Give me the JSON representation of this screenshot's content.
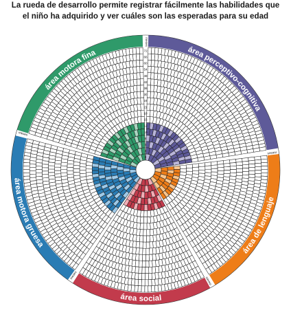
{
  "header": {
    "line1": "La rueda de desarrollo permite registrar fácilmente las habilidades que",
    "line2": "el niño ha adquirido y ver cuáles son las esperadas para su edad"
  },
  "areas": [
    {
      "key": "fine_motor",
      "label": "área motora fina",
      "color": "#2f9a6a",
      "light": "#a9d5c0"
    },
    {
      "key": "perceptual",
      "label": "área perceptivo-cognitiva",
      "color": "#5e5a99",
      "light": "#b9b5d9"
    },
    {
      "key": "language",
      "label": "área de lenguaje",
      "color": "#ee7d18",
      "light": "#f9c58d"
    },
    {
      "key": "social",
      "label": "área social",
      "color": "#c23b4c",
      "light": "#f2aeb6"
    },
    {
      "key": "gross_motor",
      "label": "área motora gruesa",
      "color": "#2a7cb4",
      "light": "#9fcae8"
    }
  ],
  "month_label": "meses",
  "month_ticks": [
    "2",
    "4",
    "6",
    "8",
    "10",
    "12",
    "15",
    "18",
    "21",
    "24",
    "30",
    "36",
    "42",
    "48",
    "54",
    "60",
    "66",
    "72"
  ],
  "icon_symbols": [
    "C",
    "F",
    "H",
    "K",
    "E",
    "CH",
    "Y",
    "Z",
    "U",
    "D",
    "G",
    "P",
    "B",
    "N",
    "M",
    "L",
    "T",
    "I",
    "A",
    "R",
    "S",
    "O",
    "V",
    "J",
    "Q",
    "W",
    "X"
  ]
}
